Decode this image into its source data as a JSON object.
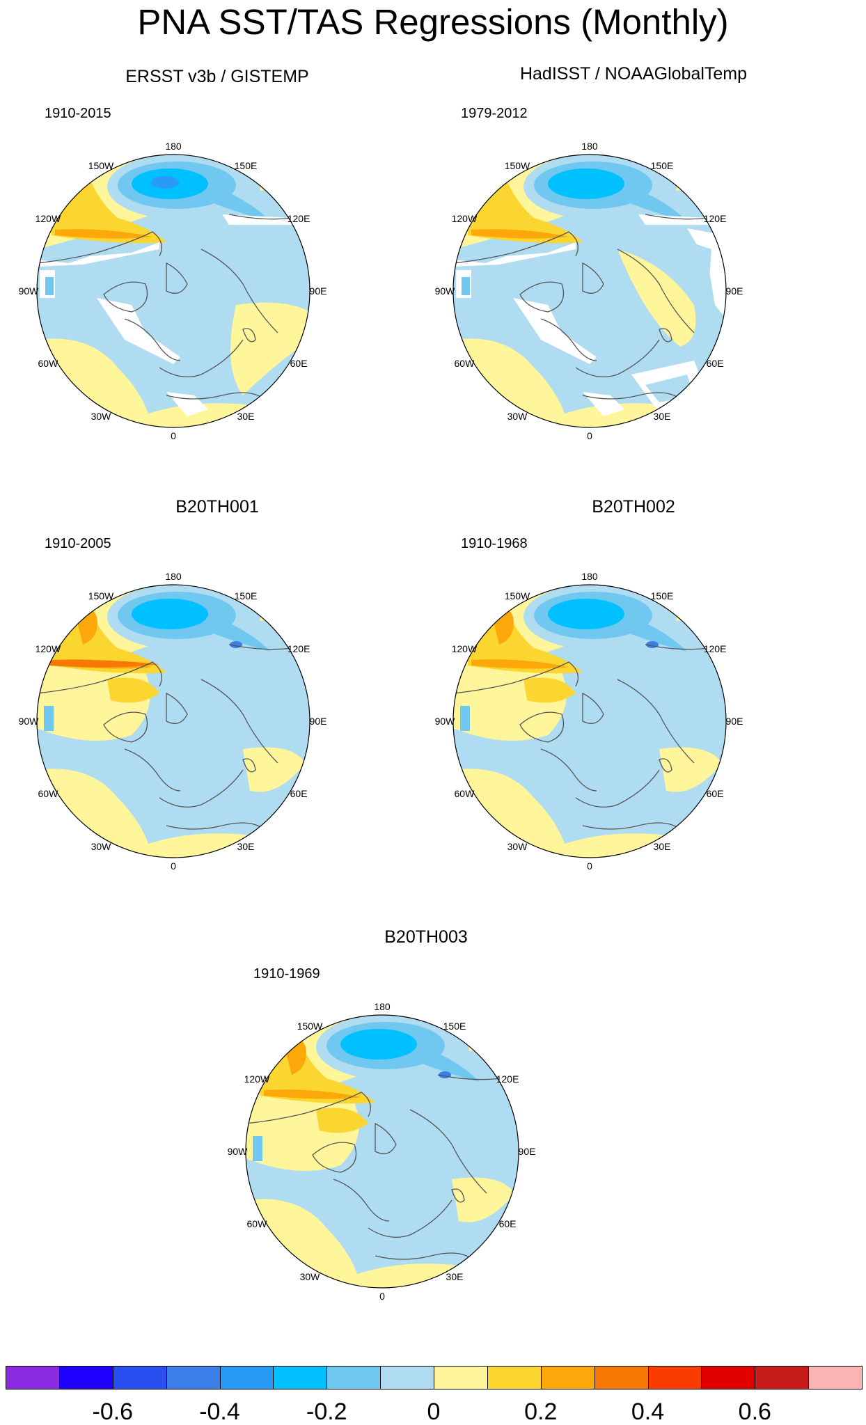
{
  "title": "PNA SST/TAS Regressions (Monthly)",
  "panels": [
    {
      "title": "ERSST v3b / GISTEMP",
      "years": "1910-2015"
    },
    {
      "title": "HadISST / NOAAGlobalTemp",
      "years": "1979-2012"
    },
    {
      "title": "B20TH001",
      "years": "1910-2005"
    },
    {
      "title": "B20TH002",
      "years": "1910-1968"
    },
    {
      "title": "B20TH003",
      "years": "1910-1969"
    }
  ],
  "longitude_labels": [
    "180",
    "150E",
    "120E",
    "90E",
    "60E",
    "30E",
    "0",
    "30W",
    "60W",
    "90W",
    "120W",
    "150W"
  ],
  "colorbar": {
    "colors": [
      "#8a2be2",
      "#1f00ff",
      "#2a4ff0",
      "#3b7ee8",
      "#2a9af8",
      "#00c0ff",
      "#70c8f0",
      "#b0dcf2",
      "#fff59a",
      "#fcd630",
      "#fca80a",
      "#f87806",
      "#fa3c00",
      "#e00000",
      "#c81c1c",
      "#fcb4b4"
    ],
    "labels": [
      "-0.6",
      "-0.4",
      "-0.2",
      "0",
      "0.2",
      "0.4",
      "0.6"
    ]
  }
}
